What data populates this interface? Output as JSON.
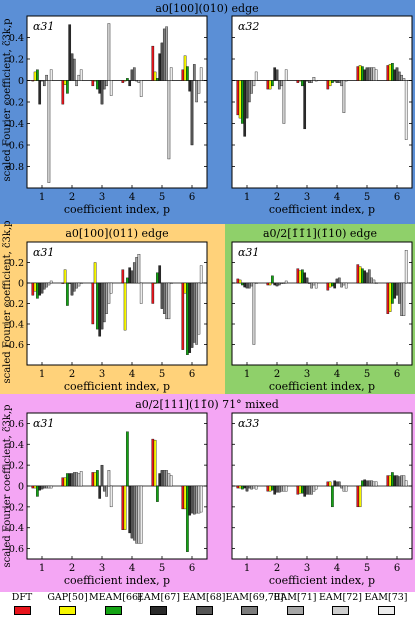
{
  "sections": [
    {
      "title": "a0[100](010) edge",
      "ylabel": "scaled Fourier coefficient, c̃3k,p",
      "color": "#5b8fd6"
    },
    {
      "title_left": "a0[100](011) edge",
      "title_right": "a0/2[1̄1̄1](1̄10) edge",
      "ylabel": "scaled Fourier coefficient, c̃3k,p",
      "color_left": "#ffd27a",
      "color_right": "#8fd06a"
    },
    {
      "title": "a0/2[111](11̄0) 71° mixed",
      "ylabel": "scaled Fourier coefficient, c̃3k,p",
      "color": "#f4a6f4"
    }
  ],
  "xlabel": "coefficient index, p",
  "legend": [
    {
      "label": "DFT",
      "color": "#e8141c"
    },
    {
      "label": "GAP[50]",
      "color": "#f6f600"
    },
    {
      "label": "MEAM[66]",
      "color": "#14a314"
    },
    {
      "label": "EAM[67]",
      "color": "#2a2a2a"
    },
    {
      "label": "EAM[68]",
      "color": "#555555"
    },
    {
      "label": "EAM[69,70]",
      "color": "#7c7c7c"
    },
    {
      "label": "EAM[71]",
      "color": "#a6a6a6"
    },
    {
      "label": "EAM[72]",
      "color": "#cdcdcd"
    },
    {
      "label": "EAM[73]",
      "color": "#ececec"
    }
  ],
  "chart_data": [
    {
      "type": "bar",
      "id": "p1",
      "label": "α31",
      "categories": [
        "1",
        "2",
        "3",
        "4",
        "5",
        "6"
      ],
      "ylim": [
        -1.0,
        0.6
      ],
      "yticks": [
        "-0.8",
        "-0.6",
        "-0.4",
        "-0.2",
        "0",
        "0.2",
        "0.4"
      ],
      "values": [
        [
          0.0,
          0.08,
          0.1,
          -0.22,
          0.0,
          -0.05,
          0.05,
          -0.95,
          0.1
        ],
        [
          -0.22,
          -0.04,
          -0.12,
          0.52,
          0.25,
          0.2,
          -0.05,
          0.05,
          0.1
        ],
        [
          -0.05,
          0.0,
          -0.08,
          -0.12,
          -0.22,
          -0.08,
          -0.05,
          0.53,
          -0.14
        ],
        [
          -0.02,
          0.0,
          0.02,
          -0.05,
          0.1,
          0.12,
          0.0,
          -0.02,
          -0.15
        ],
        [
          0.32,
          0.08,
          0.02,
          0.25,
          0.35,
          0.48,
          0.5,
          -0.73,
          0.12
        ],
        [
          0.1,
          0.23,
          0.13,
          -0.1,
          -0.6,
          0.15,
          -0.2,
          -0.12,
          0.12
        ]
      ]
    },
    {
      "type": "bar",
      "id": "p2",
      "label": "α32",
      "categories": [
        "1",
        "2",
        "3",
        "4",
        "5",
        "6"
      ],
      "ylim": [
        -1.0,
        0.6
      ],
      "yticks": [
        "-0.8",
        "-0.6",
        "-0.4",
        "-0.2",
        "0",
        "0.2",
        "0.4"
      ],
      "values": [
        [
          -0.32,
          -0.35,
          -0.4,
          -0.52,
          -0.35,
          -0.2,
          -0.12,
          -0.05,
          0.08
        ],
        [
          -0.08,
          -0.08,
          -0.05,
          0.12,
          0.1,
          -0.08,
          -0.05,
          -0.4,
          0.1
        ],
        [
          -0.02,
          0.0,
          -0.05,
          -0.45,
          0.0,
          -0.02,
          -0.02,
          0.03,
          0.0
        ],
        [
          -0.08,
          -0.05,
          -0.02,
          0.0,
          -0.02,
          -0.02,
          -0.05,
          -0.3,
          0.0
        ],
        [
          0.13,
          0.14,
          0.13,
          0.1,
          0.12,
          0.12,
          0.12,
          0.12,
          0.1
        ],
        [
          0.14,
          0.15,
          0.16,
          0.1,
          0.12,
          0.08,
          0.05,
          0.02,
          -0.55
        ]
      ]
    },
    {
      "type": "bar",
      "id": "p3",
      "label": "α31",
      "categories": [
        "1",
        "2",
        "3",
        "4",
        "5",
        "6"
      ],
      "ylim": [
        -0.8,
        0.4
      ],
      "yticks": [
        "-0.6",
        "-0.4",
        "-0.2",
        "0",
        "0.2"
      ],
      "values": [
        [
          -0.12,
          -0.08,
          -0.15,
          -0.12,
          -0.1,
          -0.06,
          -0.04,
          -0.02,
          0.02
        ],
        [
          0.0,
          0.13,
          -0.22,
          0.0,
          -0.12,
          -0.08,
          -0.05,
          -0.03,
          0.0
        ],
        [
          -0.4,
          0.2,
          -0.45,
          -0.52,
          -0.45,
          -0.38,
          -0.3,
          -0.2,
          -0.1
        ],
        [
          0.13,
          -0.46,
          0.05,
          0.15,
          0.12,
          0.2,
          0.25,
          0.28,
          -0.2
        ],
        [
          -0.2,
          0.0,
          0.1,
          0.17,
          -0.25,
          -0.3,
          -0.35,
          -0.35,
          0.0
        ],
        [
          -0.65,
          -0.1,
          -0.7,
          -0.68,
          -0.63,
          -0.58,
          -0.6,
          -0.5,
          0.17
        ]
      ]
    },
    {
      "type": "bar",
      "id": "p4",
      "label": "α31",
      "categories": [
        "1",
        "2",
        "3",
        "4",
        "5",
        "6"
      ],
      "ylim": [
        -0.8,
        0.4
      ],
      "yticks": [
        "-0.6",
        "-0.4",
        "-0.2",
        "0",
        "0.2"
      ],
      "values": [
        [
          0.04,
          0.03,
          -0.02,
          -0.04,
          -0.05,
          -0.05,
          -0.03,
          -0.6,
          0.0
        ],
        [
          -0.02,
          -0.02,
          0.07,
          -0.02,
          -0.03,
          -0.02,
          0.0,
          0.0,
          0.02
        ],
        [
          0.14,
          0.12,
          0.13,
          0.1,
          0.05,
          0.0,
          -0.05,
          -0.02,
          -0.05
        ],
        [
          -0.07,
          -0.04,
          -0.03,
          -0.05,
          0.04,
          0.05,
          -0.04,
          -0.02,
          -0.05
        ],
        [
          0.18,
          0.16,
          0.14,
          0.12,
          0.1,
          0.13,
          0.05,
          0.03,
          0.0
        ],
        [
          -0.3,
          -0.28,
          -0.2,
          -0.15,
          -0.12,
          -0.2,
          -0.32,
          -0.32,
          0.32
        ]
      ]
    },
    {
      "type": "bar",
      "id": "p5",
      "label": "α31",
      "categories": [
        "1",
        "2",
        "3",
        "4",
        "5",
        "6"
      ],
      "ylim": [
        -0.7,
        0.7
      ],
      "yticks": [
        "-0.6",
        "-0.4",
        "-0.2",
        "0",
        "0.2",
        "0.4",
        "0.6"
      ],
      "values": [
        [
          -0.02,
          -0.02,
          -0.1,
          -0.04,
          -0.03,
          -0.02,
          -0.02,
          -0.02,
          -0.02
        ],
        [
          0.08,
          0.08,
          0.12,
          0.12,
          0.12,
          0.13,
          0.13,
          0.12,
          0.14
        ],
        [
          0.13,
          0.13,
          0.15,
          -0.12,
          0.2,
          -0.05,
          -0.1,
          0.15,
          -0.2
        ],
        [
          -0.42,
          -0.42,
          0.52,
          -0.45,
          -0.5,
          -0.52,
          -0.55,
          -0.55,
          -0.55
        ],
        [
          0.45,
          0.44,
          -0.15,
          0.12,
          0.15,
          0.15,
          0.15,
          0.12,
          0.1
        ],
        [
          -0.22,
          -0.22,
          -0.63,
          -0.28,
          -0.26,
          -0.27,
          -0.26,
          -0.26,
          -0.25
        ]
      ]
    },
    {
      "type": "bar",
      "id": "p6",
      "label": "α33",
      "categories": [
        "1",
        "2",
        "3",
        "4",
        "5",
        "6"
      ],
      "ylim": [
        -0.7,
        0.7
      ],
      "yticks": [
        "-0.6",
        "-0.4",
        "-0.2",
        "0",
        "0.2",
        "0.4",
        "0.6"
      ],
      "values": [
        [
          -0.02,
          -0.02,
          -0.03,
          -0.02,
          -0.05,
          -0.02,
          -0.03,
          -0.02,
          -0.03
        ],
        [
          -0.05,
          -0.05,
          -0.04,
          -0.08,
          -0.06,
          -0.06,
          -0.05,
          -0.05,
          -0.05
        ],
        [
          -0.08,
          -0.07,
          -0.07,
          -0.1,
          -0.08,
          -0.08,
          -0.08,
          -0.05,
          -0.03
        ],
        [
          0.04,
          0.04,
          -0.2,
          0.05,
          0.04,
          0.04,
          -0.02,
          -0.05,
          -0.05
        ],
        [
          -0.2,
          -0.2,
          0.05,
          0.06,
          0.05,
          0.05,
          0.05,
          0.04,
          0.04
        ],
        [
          0.1,
          0.1,
          0.13,
          0.1,
          0.1,
          0.09,
          0.1,
          0.1,
          0.05
        ]
      ]
    }
  ]
}
